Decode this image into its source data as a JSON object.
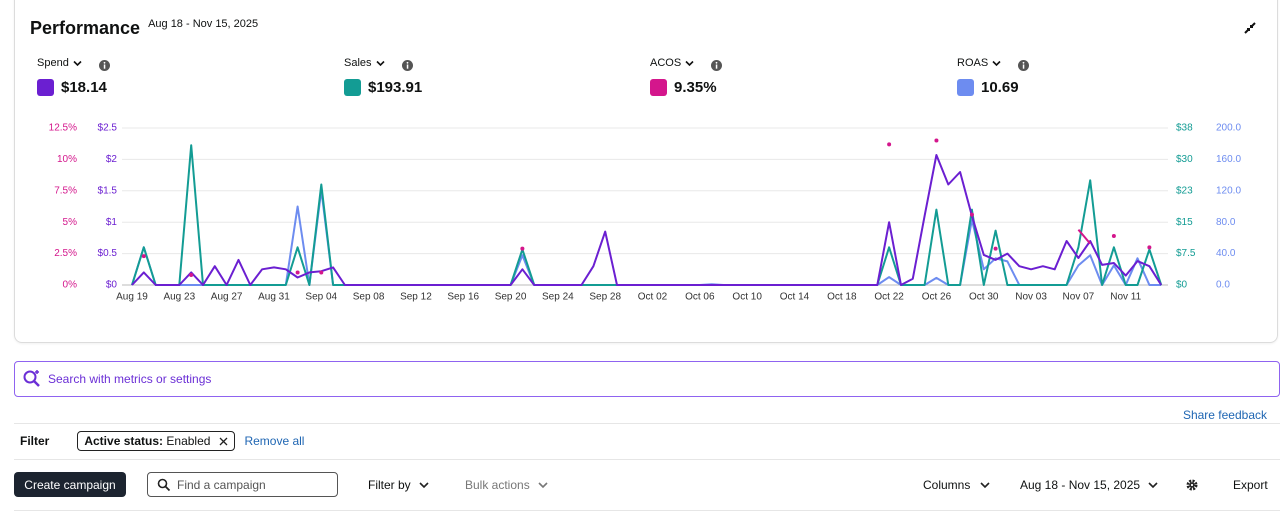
{
  "header": {
    "title": "Performance",
    "date_range": "Aug 18 - Nov 15, 2025"
  },
  "metrics": [
    {
      "label": "Spend",
      "value": "$18.14"
    },
    {
      "label": "Sales",
      "value": "$193.91"
    },
    {
      "label": "ACOS",
      "value": "9.35%"
    },
    {
      "label": "ROAS",
      "value": "10.69"
    }
  ],
  "chart_data": {
    "type": "line",
    "grid": true,
    "categories": [
      "Aug 19",
      null,
      null,
      null,
      "Aug 23",
      null,
      null,
      null,
      "Aug 27",
      null,
      null,
      null,
      "Aug 31",
      null,
      null,
      null,
      "Sep 04",
      null,
      null,
      null,
      "Sep 08",
      null,
      null,
      null,
      "Sep 12",
      null,
      null,
      null,
      "Sep 16",
      null,
      null,
      null,
      "Sep 20",
      null,
      null,
      null,
      "Sep 24",
      null,
      null,
      null,
      "Sep 28",
      null,
      null,
      null,
      "Oct 02",
      null,
      null,
      null,
      "Oct 06",
      null,
      null,
      null,
      "Oct 10",
      null,
      null,
      null,
      "Oct 14",
      null,
      null,
      null,
      "Oct 18",
      null,
      null,
      null,
      "Oct 22",
      null,
      null,
      null,
      "Oct 26",
      null,
      null,
      null,
      "Oct 30",
      null,
      null,
      null,
      "Nov 03",
      null,
      null,
      null,
      "Nov 07",
      null,
      null,
      null,
      "Nov 11",
      null,
      null,
      null
    ],
    "ylim": [
      0,
      2.5
    ],
    "yticks": [
      {
        "value": 0,
        "label": "$0"
      },
      {
        "value": 0.5,
        "label": "$0.5"
      },
      {
        "value": 1,
        "label": "$1"
      },
      {
        "value": 1.5,
        "label": "$1.5"
      },
      {
        "value": 2,
        "label": "$2"
      },
      {
        "value": 2.5,
        "label": "$2.5"
      }
    ],
    "y2lim": [
      0,
      37.5
    ],
    "y2ticks": [
      {
        "value": 0,
        "label": "$0"
      },
      {
        "value": 7.5,
        "label": "$7.5"
      },
      {
        "value": 15,
        "label": "$15"
      },
      {
        "value": 22.5,
        "label": "$23"
      },
      {
        "value": 30,
        "label": "$30"
      },
      {
        "value": 37.5,
        "label": "$38"
      }
    ],
    "y3lim": [
      0,
      12.5
    ],
    "y3ticks": [
      {
        "value": 0,
        "label": "0%"
      },
      {
        "value": 2.5,
        "label": "2.5%"
      },
      {
        "value": 5,
        "label": "5%"
      },
      {
        "value": 7.5,
        "label": "7.5%"
      },
      {
        "value": 10,
        "label": "10%"
      },
      {
        "value": 12.5,
        "label": "12.5%"
      }
    ],
    "y4lim": [
      0,
      200
    ],
    "y4ticks": [
      {
        "value": 0,
        "label": "0.0"
      },
      {
        "value": 40,
        "label": "40.0"
      },
      {
        "value": 80,
        "label": "80.0"
      },
      {
        "value": 120,
        "label": "120.0"
      },
      {
        "value": 160,
        "label": "160.0"
      },
      {
        "value": 200,
        "label": "200.0"
      }
    ],
    "series": [
      {
        "name": "Spend",
        "color": "#6b1fd1",
        "axis": "y",
        "values": [
          0,
          0.2,
          0,
          0,
          0,
          0.2,
          0,
          0.3,
          0,
          0.4,
          0,
          0.25,
          0.28,
          0.25,
          0.12,
          0.2,
          0.22,
          0.28,
          0,
          0,
          0,
          0,
          0,
          0,
          0,
          0,
          0,
          0,
          0,
          0,
          0,
          0,
          0,
          0.25,
          0,
          0,
          0,
          0,
          0,
          0.3,
          0.85,
          0,
          0,
          0,
          0,
          0,
          0,
          0,
          0,
          0,
          0,
          0,
          0,
          0,
          0,
          0,
          0,
          0,
          0,
          0,
          0,
          0,
          0,
          0,
          1.0,
          0,
          0.1,
          1.1,
          2.07,
          1.6,
          1.8,
          1.1,
          0.48,
          0.4,
          0.5,
          0.3,
          0.25,
          0.3,
          0.25,
          0.7,
          0.43,
          0.7,
          0.32,
          0.35,
          0.15,
          0.38,
          0.3,
          0
        ]
      },
      {
        "name": "Sales",
        "color": "#139c94",
        "axis": "y2",
        "values": [
          0,
          9,
          0,
          0,
          0,
          33.4,
          0,
          0,
          0,
          0,
          0,
          0,
          0,
          0,
          9,
          0,
          24,
          0,
          0,
          0,
          0,
          0,
          0,
          0,
          0,
          0,
          0,
          0,
          0,
          0,
          0,
          0,
          0,
          8.5,
          0,
          0,
          0,
          0,
          0,
          0,
          0,
          0,
          0,
          0,
          0,
          0,
          0,
          0,
          0,
          0,
          0,
          0,
          0,
          0,
          0,
          0,
          0,
          0,
          0,
          0,
          0,
          0,
          0,
          0,
          9,
          0,
          0,
          0,
          18,
          0,
          0,
          18,
          0,
          13,
          0,
          0,
          0,
          0,
          0,
          0,
          9,
          25,
          0,
          9,
          0,
          0,
          8.5,
          0
        ]
      },
      {
        "name": "ACOS",
        "color": "#d4168c",
        "axis": "y3",
        "values": [
          null,
          2.3,
          null,
          null,
          null,
          0.8,
          null,
          null,
          null,
          null,
          null,
          null,
          null,
          null,
          1.0,
          null,
          1.0,
          null,
          null,
          null,
          null,
          null,
          null,
          null,
          null,
          null,
          null,
          null,
          null,
          null,
          null,
          null,
          null,
          2.9,
          null,
          null,
          null,
          null,
          null,
          null,
          null,
          null,
          null,
          null,
          null,
          null,
          null,
          null,
          null,
          null,
          null,
          null,
          null,
          null,
          null,
          null,
          null,
          null,
          null,
          null,
          null,
          null,
          null,
          null,
          11.2,
          null,
          null,
          null,
          11.5,
          null,
          null,
          5.6,
          null,
          2.9,
          null,
          null,
          null,
          null,
          null,
          null,
          4.4,
          3.3,
          null,
          3.9,
          null,
          null,
          3.0,
          null
        ]
      },
      {
        "name": "ROAS",
        "color": "#6d8cf0",
        "axis": "y4",
        "values": [
          0,
          48,
          0,
          0,
          0,
          0,
          0,
          0,
          0,
          0,
          0,
          0,
          0,
          0,
          100,
          0,
          121,
          0,
          0,
          0,
          0,
          0,
          0,
          0,
          0,
          0,
          0,
          0,
          0,
          0,
          0,
          0,
          0,
          38,
          0,
          0,
          0,
          0,
          0,
          0,
          0,
          0,
          0,
          0,
          0,
          0,
          0,
          0,
          0,
          1,
          0,
          0,
          0,
          0,
          0,
          0,
          0,
          0,
          0,
          0,
          0,
          0,
          0,
          0,
          10,
          0,
          0,
          0,
          9,
          0,
          0,
          83,
          20,
          34,
          30,
          0,
          0,
          0,
          0,
          0,
          25,
          38,
          0,
          25,
          0,
          34,
          0,
          0
        ]
      }
    ]
  },
  "search": {
    "placeholder": "Search with metrics or settings"
  },
  "share_feedback": "Share feedback",
  "filter": {
    "label": "Filter",
    "chip_key": "Active status:",
    "chip_value": "Enabled",
    "remove_all": "Remove all"
  },
  "toolbar": {
    "create": "Create campaign",
    "find": "Find a campaign",
    "filter_by": "Filter by",
    "bulk": "Bulk actions",
    "columns": "Columns",
    "date": "Aug 18 - Nov 15, 2025",
    "export": "Export"
  }
}
